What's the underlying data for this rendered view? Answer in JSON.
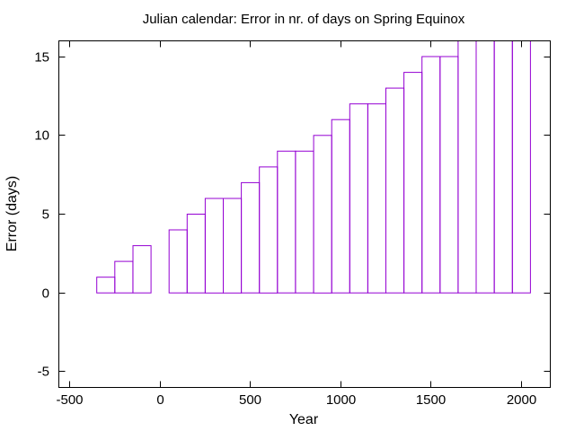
{
  "chart_data": {
    "type": "bar",
    "title": "Julian calendar: Error in nr. of days on Spring Equinox",
    "xlabel": "Year",
    "ylabel": "Error (days)",
    "xlim": [
      -560,
      2160
    ],
    "ylim": [
      -6,
      16
    ],
    "xticks": [
      -500,
      0,
      500,
      1000,
      1500,
      2000
    ],
    "xtick_labels": [
      "-500",
      "0",
      "500",
      "1000",
      "1500",
      "2000"
    ],
    "yticks": [
      -5,
      0,
      5,
      10,
      15
    ],
    "ytick_labels": [
      "-5",
      "0",
      "5",
      "10",
      "15"
    ],
    "bin_width": 100,
    "bars": [
      {
        "x": -500,
        "value": 0
      },
      {
        "x": -400,
        "value": 0
      },
      {
        "x": -300,
        "value": 1
      },
      {
        "x": -200,
        "value": 2
      },
      {
        "x": -100,
        "value": 3
      },
      {
        "x": 0,
        "value": 0
      },
      {
        "x": 100,
        "value": 4
      },
      {
        "x": 200,
        "value": 5
      },
      {
        "x": 300,
        "value": 6
      },
      {
        "x": 400,
        "value": 6
      },
      {
        "x": 500,
        "value": 7
      },
      {
        "x": 600,
        "value": 8
      },
      {
        "x": 700,
        "value": 9
      },
      {
        "x": 800,
        "value": 9
      },
      {
        "x": 900,
        "value": 10
      },
      {
        "x": 1000,
        "value": 11
      },
      {
        "x": 1100,
        "value": 12
      },
      {
        "x": 1200,
        "value": 12
      },
      {
        "x": 1300,
        "value": 13
      },
      {
        "x": 1400,
        "value": 14
      },
      {
        "x": 1500,
        "value": 15
      },
      {
        "x": 1600,
        "value": 15
      },
      {
        "x": 1700,
        "value": 16
      },
      {
        "x": 1800,
        "value": 16
      },
      {
        "x": 1900,
        "value": 16
      },
      {
        "x": 2000,
        "value": 16
      }
    ],
    "grid": false,
    "colors": {
      "bars": "#9400d3",
      "axes": "#000000"
    }
  }
}
